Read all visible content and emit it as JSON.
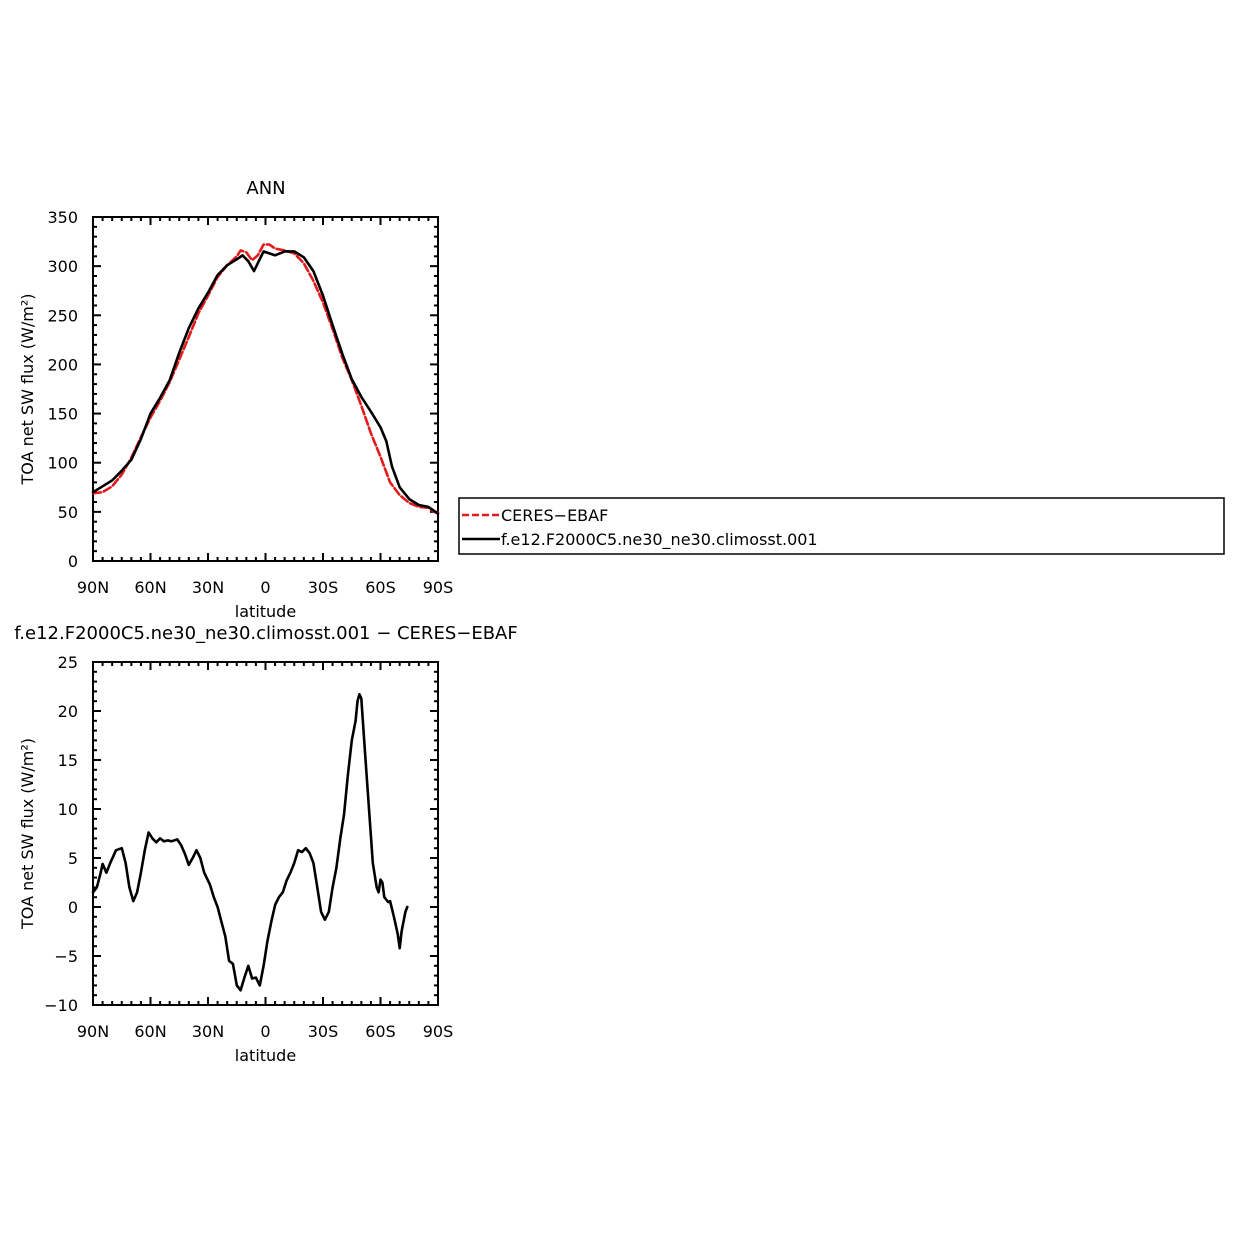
{
  "colors": {
    "observed": "#e41a1c",
    "model": "#000000",
    "axes": "#000000"
  },
  "legend": {
    "entries": [
      {
        "label": "CERES−EBAF",
        "color": "#e41a1c",
        "style": "dashed"
      },
      {
        "label": "f.e12.F2000C5.ne30_ne30.climosst.001",
        "color": "#000000",
        "style": "solid"
      }
    ]
  },
  "chart_data": [
    {
      "type": "line",
      "title": "ANN",
      "xlabel": "latitude",
      "ylabel": "TOA net SW flux (W/m²)",
      "xlim": [
        90,
        -90
      ],
      "ylim": [
        0,
        350
      ],
      "xticks": [
        90,
        60,
        30,
        0,
        -30,
        -60,
        -90
      ],
      "xtick_labels": [
        "90N",
        "60N",
        "30N",
        "0",
        "30S",
        "60S",
        "90S"
      ],
      "yticks": [
        0,
        50,
        100,
        150,
        200,
        250,
        300,
        350
      ],
      "ytick_labels": [
        "0",
        "50",
        "100",
        "150",
        "200",
        "250",
        "300",
        "350"
      ],
      "series": [
        {
          "name": "CERES−EBAF",
          "color": "#e41a1c",
          "style": "dashed",
          "points": [
            [
              90,
              69
            ],
            [
              85,
              70
            ],
            [
              80,
              76
            ],
            [
              75,
              88
            ],
            [
              70,
              105
            ],
            [
              65,
              126
            ],
            [
              60,
              146
            ],
            [
              55,
              163
            ],
            [
              50,
              182
            ],
            [
              45,
              205
            ],
            [
              40,
              228
            ],
            [
              35,
              252
            ],
            [
              30,
              270
            ],
            [
              25,
              289
            ],
            [
              20,
              301
            ],
            [
              15,
              310
            ],
            [
              13,
              316
            ],
            [
              10,
              314
            ],
            [
              7,
              306
            ],
            [
              4,
              311
            ],
            [
              1,
              322
            ],
            [
              -2,
              322
            ],
            [
              -5,
              318
            ],
            [
              -10,
              316
            ],
            [
              -15,
              313
            ],
            [
              -20,
              303
            ],
            [
              -25,
              285
            ],
            [
              -30,
              263
            ],
            [
              -35,
              236
            ],
            [
              -40,
              207
            ],
            [
              -45,
              184
            ],
            [
              -50,
              158
            ],
            [
              -55,
              130
            ],
            [
              -60,
              106
            ],
            [
              -65,
              80
            ],
            [
              -70,
              67
            ],
            [
              -75,
              59
            ],
            [
              -80,
              55
            ],
            [
              -85,
              54
            ],
            [
              -88,
              50
            ],
            [
              -90,
              49
            ]
          ]
        },
        {
          "name": "f.e12.F2000C5.ne30_ne30.climosst.001",
          "color": "#000000",
          "style": "solid",
          "points": [
            [
              90,
              70
            ],
            [
              85,
              76
            ],
            [
              80,
              82
            ],
            [
              75,
              92
            ],
            [
              70,
              103
            ],
            [
              65,
              124
            ],
            [
              60,
              150
            ],
            [
              55,
              166
            ],
            [
              50,
              184
            ],
            [
              45,
              212
            ],
            [
              40,
              237
            ],
            [
              35,
              257
            ],
            [
              30,
              273
            ],
            [
              25,
              291
            ],
            [
              20,
              301
            ],
            [
              15,
              307
            ],
            [
              12,
              311
            ],
            [
              9,
              305
            ],
            [
              6,
              295
            ],
            [
              4,
              303
            ],
            [
              1,
              315
            ],
            [
              -2,
              313
            ],
            [
              -5,
              311
            ],
            [
              -10,
              315
            ],
            [
              -15,
              315
            ],
            [
              -20,
              309
            ],
            [
              -25,
              295
            ],
            [
              -30,
              270
            ],
            [
              -35,
              240
            ],
            [
              -40,
              211
            ],
            [
              -45,
              185
            ],
            [
              -50,
              167
            ],
            [
              -55,
              152
            ],
            [
              -60,
              136
            ],
            [
              -63,
              122
            ],
            [
              -66,
              96
            ],
            [
              -70,
              75
            ],
            [
              -75,
              63
            ],
            [
              -80,
              57
            ],
            [
              -85,
              55
            ],
            [
              -88,
              51
            ],
            [
              -90,
              48
            ]
          ]
        }
      ]
    },
    {
      "type": "line",
      "title": "f.e12.F2000C5.ne30_ne30.climosst.001 − CERES−EBAF",
      "xlabel": "latitude",
      "ylabel": "TOA net SW flux (W/m²)",
      "xlim": [
        90,
        -90
      ],
      "ylim": [
        -10,
        25
      ],
      "xticks": [
        90,
        60,
        30,
        0,
        -30,
        -60,
        -90
      ],
      "xtick_labels": [
        "90N",
        "60N",
        "30N",
        "0",
        "30S",
        "60S",
        "90S"
      ],
      "yticks": [
        -10,
        -5,
        0,
        5,
        10,
        15,
        20,
        25
      ],
      "ytick_labels": [
        "−10",
        "−5",
        "0",
        "5",
        "10",
        "15",
        "20",
        "25"
      ],
      "series": [
        {
          "color": "#000000",
          "style": "solid",
          "points": [
            [
              90,
              1.5
            ],
            [
              88,
              2
            ],
            [
              86,
              3.5
            ],
            [
              85,
              4.4
            ],
            [
              83,
              3.5
            ],
            [
              81,
              4.5
            ],
            [
              78,
              5.8
            ],
            [
              75,
              6
            ],
            [
              73,
              4.5
            ],
            [
              71,
              2
            ],
            [
              69,
              0.6
            ],
            [
              67,
              1.5
            ],
            [
              65,
              3.5
            ],
            [
              63,
              5.8
            ],
            [
              61,
              7.6
            ],
            [
              59,
              7
            ],
            [
              57,
              6.6
            ],
            [
              55,
              7
            ],
            [
              53,
              6.7
            ],
            [
              51,
              6.8
            ],
            [
              49,
              6.7
            ],
            [
              46,
              6.9
            ],
            [
              44,
              6.3
            ],
            [
              42,
              5.4
            ],
            [
              40,
              4.3
            ],
            [
              38,
              5
            ],
            [
              36,
              5.8
            ],
            [
              34,
              5
            ],
            [
              32,
              3.5
            ],
            [
              29,
              2.3
            ],
            [
              27,
              1
            ],
            [
              25,
              0
            ],
            [
              23,
              -1.5
            ],
            [
              21,
              -3
            ],
            [
              19,
              -5.5
            ],
            [
              17,
              -5.8
            ],
            [
              15,
              -8
            ],
            [
              13,
              -8.5
            ],
            [
              11,
              -7.2
            ],
            [
              9,
              -6
            ],
            [
              7,
              -7.3
            ],
            [
              5,
              -7.2
            ],
            [
              3,
              -8
            ],
            [
              1,
              -6
            ],
            [
              -1,
              -3.5
            ],
            [
              -3,
              -1.5
            ],
            [
              -5,
              0.2
            ],
            [
              -7,
              1
            ],
            [
              -9,
              1.5
            ],
            [
              -11,
              2.7
            ],
            [
              -13,
              3.5
            ],
            [
              -15,
              4.5
            ],
            [
              -17,
              5.8
            ],
            [
              -19,
              5.6
            ],
            [
              -21,
              6
            ],
            [
              -23,
              5.5
            ],
            [
              -25,
              4.5
            ],
            [
              -27,
              2
            ],
            [
              -29,
              -0.5
            ],
            [
              -31,
              -1.3
            ],
            [
              -33,
              -0.5
            ],
            [
              -35,
              2
            ],
            [
              -37,
              4
            ],
            [
              -39,
              7
            ],
            [
              -41,
              9.5
            ],
            [
              -43,
              13.5
            ],
            [
              -45,
              17
            ],
            [
              -47,
              19
            ],
            [
              -48,
              21
            ],
            [
              -49,
              21.7
            ],
            [
              -50,
              21.3
            ],
            [
              -52,
              15.5
            ],
            [
              -54,
              10
            ],
            [
              -56,
              4.5
            ],
            [
              -58,
              2
            ],
            [
              -59,
              1.5
            ],
            [
              -60,
              2.8
            ],
            [
              -61,
              2.5
            ],
            [
              -62,
              1
            ],
            [
              -64,
              0.5
            ],
            [
              -65,
              0.6
            ],
            [
              -67,
              -1
            ],
            [
              -69,
              -2.8
            ],
            [
              -70,
              -4.2
            ],
            [
              -71,
              -2.5
            ],
            [
              -73,
              -0.5
            ],
            [
              -74,
              0
            ]
          ]
        }
      ]
    }
  ]
}
